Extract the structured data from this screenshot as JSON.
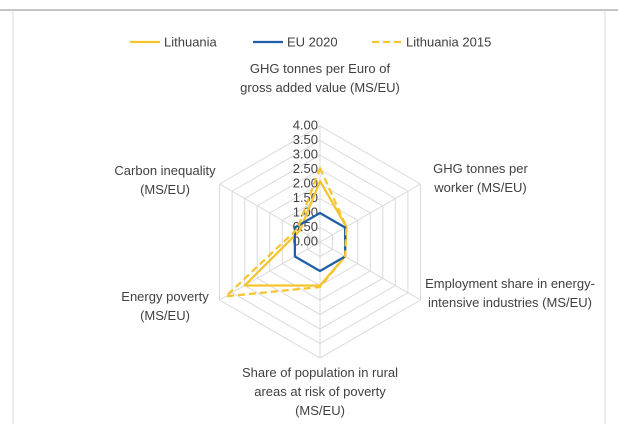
{
  "chart_data": {
    "type": "radar",
    "categories": [
      "GHG tonnes per Euro of gross added value (MS/EU)",
      "GHG tonnes per worker (MS/EU)",
      "Employment share in energy-intensive industries (MS/EU)",
      "Share of population in rural areas at risk of poverty (MS/EU)",
      "Energy poverty (MS/EU)",
      "Carbon inequality (MS/EU)"
    ],
    "series": [
      {
        "name": "Lithuania",
        "color": "#f5c530",
        "dash": false,
        "values": [
          2.1,
          1.05,
          1.0,
          1.5,
          3.0,
          0.8
        ]
      },
      {
        "name": "EU 2020",
        "color": "#1f5fa6",
        "dash": false,
        "values": [
          1,
          1,
          1,
          1,
          1,
          1
        ]
      },
      {
        "name": "Lithuania 2015",
        "color": "#f5c530",
        "dash": true,
        "values": [
          2.55,
          1.05,
          1.0,
          1.55,
          3.75,
          0.9
        ]
      }
    ],
    "ylim": [
      0,
      4
    ],
    "yticks": [
      {
        "value": 0,
        "label": "0.00"
      },
      {
        "value": 0.5,
        "label": "0.50"
      },
      {
        "value": 1,
        "label": "1.00"
      },
      {
        "value": 1.5,
        "label": "1.50"
      },
      {
        "value": 2,
        "label": "2.00"
      },
      {
        "value": 2.5,
        "label": "2.50"
      },
      {
        "value": 3,
        "label": "3.00"
      },
      {
        "value": 3.5,
        "label": "3.50"
      },
      {
        "value": 4,
        "label": "4.00"
      }
    ],
    "grid": true,
    "legend": "top"
  }
}
